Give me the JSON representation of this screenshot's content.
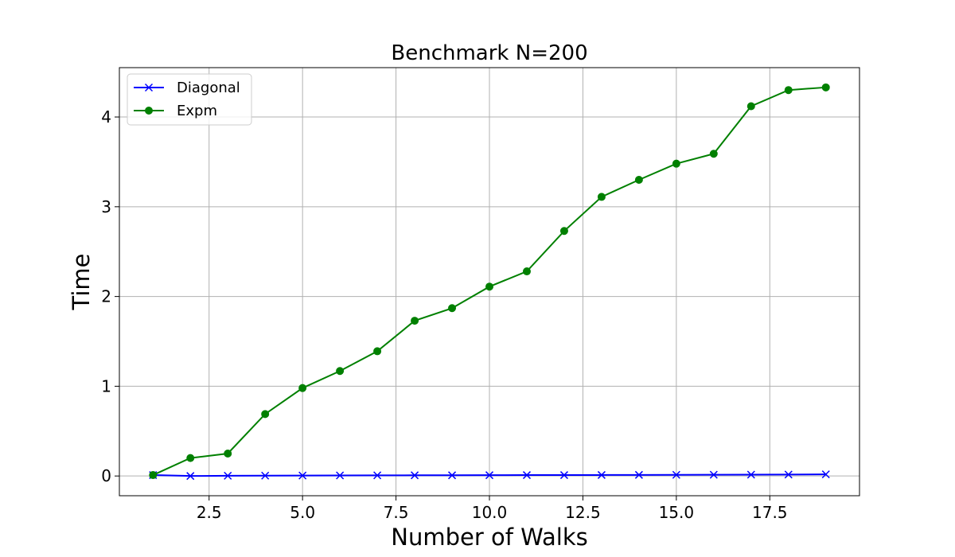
{
  "chart_data": {
    "type": "line",
    "title": "Benchmark N=200",
    "xlabel": "Number of Walks",
    "ylabel": "Time",
    "xlim": [
      0.1,
      19.9
    ],
    "ylim": [
      -0.22,
      4.55
    ],
    "xticks": [
      2.5,
      5.0,
      7.5,
      10.0,
      12.5,
      15.0,
      17.5
    ],
    "xtick_labels": [
      "2.5",
      "5.0",
      "7.5",
      "10.0",
      "12.5",
      "15.0",
      "17.5"
    ],
    "yticks": [
      0,
      1,
      2,
      3,
      4
    ],
    "ytick_labels": [
      "0",
      "1",
      "2",
      "3",
      "4"
    ],
    "grid": true,
    "legend_position": "upper-left",
    "x": [
      1,
      2,
      3,
      4,
      5,
      6,
      7,
      8,
      9,
      10,
      11,
      12,
      13,
      14,
      15,
      16,
      17,
      18,
      19
    ],
    "series": [
      {
        "name": "Diagonal",
        "color": "#0000ff",
        "marker": "x",
        "values": [
          0.01,
          0.0,
          0.003,
          0.004,
          0.005,
          0.006,
          0.007,
          0.008,
          0.008,
          0.009,
          0.01,
          0.01,
          0.011,
          0.012,
          0.013,
          0.014,
          0.015,
          0.016,
          0.018
        ]
      },
      {
        "name": "Expm",
        "color": "#008000",
        "marker": "o",
        "values": [
          0.01,
          0.2,
          0.25,
          0.69,
          0.98,
          1.17,
          1.39,
          1.73,
          1.87,
          2.11,
          2.28,
          2.73,
          3.11,
          3.3,
          3.48,
          3.59,
          4.12,
          4.3,
          4.33
        ]
      }
    ]
  }
}
